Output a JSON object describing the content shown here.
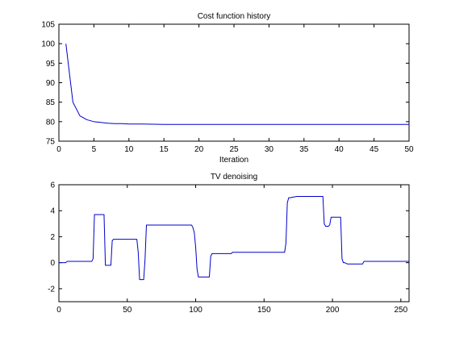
{
  "colors": {
    "line": "#0000cc",
    "axes": "#000000",
    "background": "#ffffff"
  },
  "chart_data": [
    {
      "type": "line",
      "title": "Cost function history",
      "xlabel": "Iteration",
      "ylabel": "",
      "xlim": [
        0,
        50
      ],
      "ylim": [
        75,
        105
      ],
      "xticks": [
        0,
        5,
        10,
        15,
        20,
        25,
        30,
        35,
        40,
        45,
        50
      ],
      "yticks": [
        75,
        80,
        85,
        90,
        95,
        100,
        105
      ],
      "grid": false,
      "series": [
        {
          "x": [
            1,
            2,
            3,
            4,
            5,
            6,
            7,
            8,
            9,
            10,
            12,
            15,
            20,
            30,
            40,
            50
          ],
          "y": [
            100,
            85,
            81.5,
            80.5,
            80,
            79.8,
            79.6,
            79.5,
            79.5,
            79.4,
            79.4,
            79.3,
            79.3,
            79.3,
            79.3,
            79.3
          ]
        }
      ]
    },
    {
      "type": "line",
      "title": "TV denoising",
      "xlabel": "",
      "ylabel": "",
      "xlim": [
        0,
        256
      ],
      "ylim": [
        -3,
        6
      ],
      "xticks": [
        0,
        50,
        100,
        150,
        200,
        250
      ],
      "yticks": [
        -2,
        0,
        2,
        4,
        6
      ],
      "grid": false,
      "series": [
        {
          "x": [
            0,
            5,
            6,
            24,
            25,
            26,
            27,
            33,
            34,
            35,
            38,
            39,
            40,
            41,
            57,
            58,
            59,
            62,
            63,
            64,
            65,
            97,
            98,
            99,
            100,
            101,
            102,
            103,
            110,
            111,
            112,
            126,
            127,
            165,
            166,
            167,
            168,
            169,
            174,
            175,
            193,
            194,
            195,
            197,
            198,
            199,
            200,
            206,
            207,
            208,
            209,
            211,
            222,
            223,
            256
          ],
          "y": [
            0,
            0,
            0.1,
            0.1,
            0.3,
            3.7,
            3.7,
            3.7,
            -0.2,
            -0.2,
            -0.2,
            1.7,
            1.8,
            1.8,
            1.8,
            0.8,
            -1.3,
            -1.3,
            0.3,
            2.9,
            2.9,
            2.9,
            2.7,
            2.3,
            1.2,
            -0.5,
            -1.1,
            -1.1,
            -1.1,
            0.5,
            0.7,
            0.7,
            0.8,
            0.8,
            1.5,
            4.6,
            5.0,
            5.0,
            5.1,
            5.1,
            5.1,
            3.0,
            2.8,
            2.8,
            2.9,
            3.5,
            3.5,
            3.5,
            0.3,
            0.0,
            0.0,
            -0.1,
            -0.1,
            0.1,
            0.1
          ]
        }
      ]
    }
  ]
}
